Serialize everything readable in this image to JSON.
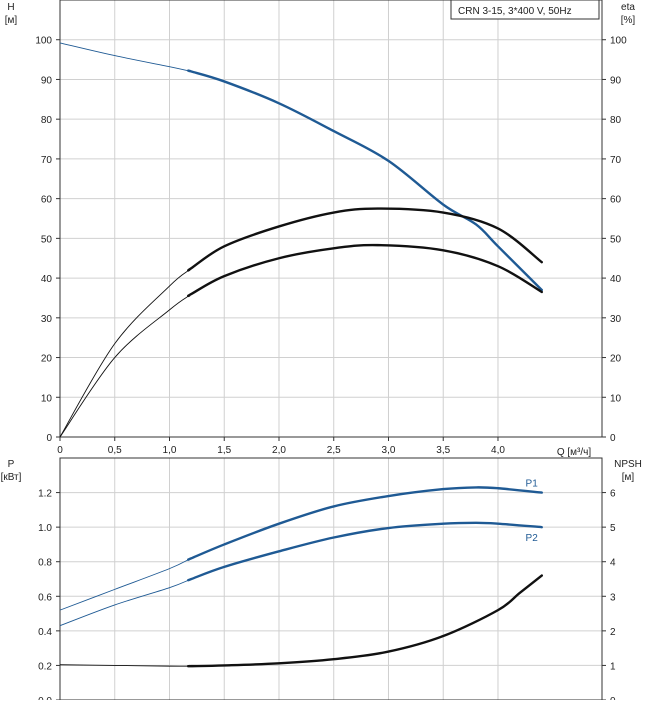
{
  "chart_data": [
    {
      "type": "line",
      "title": "CRN 3-15, 3*400 V, 50Hz",
      "y_left_label": [
        "H",
        "[м]"
      ],
      "y_right_label": [
        "eta",
        "[%]"
      ],
      "x_label": "Q [м³/ч]",
      "x_ticks": [
        "0",
        "0,5",
        "1,0",
        "1,5",
        "2,0",
        "2,5",
        "3,0",
        "3,5",
        "4,0"
      ],
      "x_tick_values": [
        0,
        0.5,
        1.0,
        1.5,
        2.0,
        2.5,
        3.0,
        3.5,
        4.0
      ],
      "y_left_ticks": [
        "0",
        "10",
        "20",
        "30",
        "40",
        "50",
        "60",
        "70",
        "80",
        "90",
        "100"
      ],
      "y_right_ticks": [
        "0",
        "10",
        "20",
        "30",
        "40",
        "50",
        "60",
        "70",
        "80",
        "90",
        "100"
      ],
      "xlim": [
        0,
        4.95
      ],
      "ylim": [
        0,
        110
      ],
      "grid": true,
      "operating_range": [
        1.18,
        4.4
      ],
      "series": [
        {
          "key": "head",
          "color": "#1f5a94",
          "x": [
            0,
            0.5,
            1.0,
            1.2,
            1.5,
            2.0,
            2.5,
            3.0,
            3.5,
            3.8,
            4.0,
            4.4
          ],
          "values": [
            99.2,
            96.0,
            93.2,
            92.0,
            89.5,
            84.0,
            77.0,
            69.5,
            58.5,
            53.5,
            48.0,
            37.0
          ]
        },
        {
          "key": "eta-total-line",
          "color": "#111111",
          "x": [
            0,
            0.5,
            1.0,
            1.2,
            1.5,
            2.0,
            2.5,
            2.9,
            3.5,
            4.0,
            4.4
          ],
          "values": [
            0,
            23.5,
            38.0,
            42.5,
            48.0,
            53.0,
            56.5,
            57.5,
            56.5,
            52.5,
            44.0
          ]
        },
        {
          "key": "eta-total-pump",
          "color": "#111111",
          "x": [
            0,
            0.5,
            1.0,
            1.2,
            1.5,
            2.0,
            2.5,
            2.9,
            3.5,
            4.0,
            4.4
          ],
          "values": [
            0,
            20.0,
            32.0,
            36.0,
            40.5,
            45.0,
            47.5,
            48.3,
            47.0,
            43.0,
            36.5
          ]
        }
      ]
    },
    {
      "type": "line",
      "y_left_label": [
        "P",
        "[кВт]"
      ],
      "y_right_label": [
        "NPSH",
        "[м]"
      ],
      "y_left_ticks": [
        "0.0",
        "0.2",
        "0.4",
        "0.6",
        "0.8",
        "1.0",
        "1.2"
      ],
      "y_right_ticks": [
        "0",
        "1",
        "2",
        "3",
        "4",
        "5",
        "6"
      ],
      "xlim": [
        0,
        4.95
      ],
      "ylim": [
        0,
        1.4
      ],
      "grid": true,
      "operating_range": [
        1.18,
        4.4
      ],
      "series": [
        {
          "name": "P1",
          "color": "#1f5a94",
          "x": [
            0,
            0.5,
            1.0,
            1.2,
            1.5,
            2.0,
            2.5,
            3.0,
            3.5,
            3.8,
            4.0,
            4.4
          ],
          "values": [
            0.52,
            0.64,
            0.76,
            0.82,
            0.9,
            1.02,
            1.12,
            1.18,
            1.22,
            1.23,
            1.225,
            1.2
          ]
        },
        {
          "name": "P2",
          "color": "#1f5a94",
          "x": [
            0,
            0.5,
            1.0,
            1.2,
            1.5,
            2.0,
            2.5,
            3.0,
            3.5,
            3.8,
            4.0,
            4.4
          ],
          "values": [
            0.43,
            0.55,
            0.65,
            0.7,
            0.77,
            0.86,
            0.94,
            0.995,
            1.02,
            1.025,
            1.02,
            1.0
          ]
        },
        {
          "key": "npsh",
          "color": "#111111",
          "axis": "right",
          "x": [
            0,
            0.5,
            1.0,
            1.2,
            1.5,
            2.0,
            2.5,
            3.0,
            3.5,
            4.0,
            4.2,
            4.4
          ],
          "values": [
            1.02,
            1.0,
            0.98,
            0.98,
            1.0,
            1.06,
            1.18,
            1.4,
            1.85,
            2.6,
            3.1,
            3.6
          ]
        }
      ]
    }
  ]
}
